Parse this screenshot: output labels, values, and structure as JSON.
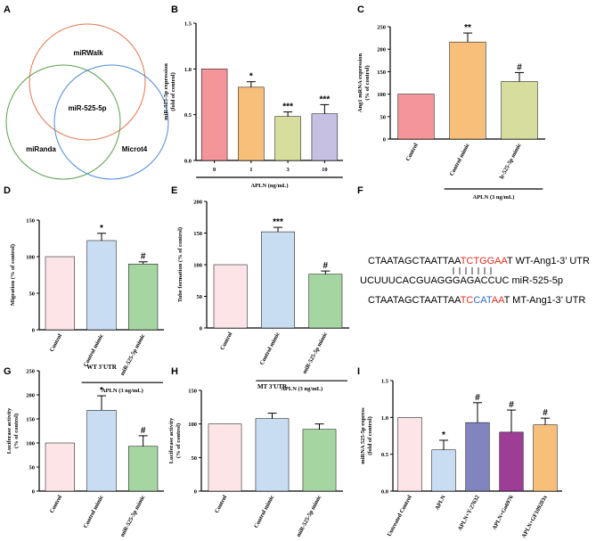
{
  "panel_labels": [
    "A",
    "B",
    "C",
    "D",
    "E",
    "F",
    "G",
    "H",
    "I"
  ],
  "venn": {
    "circles": [
      {
        "label": "miRWalk",
        "color": "#e8734a"
      },
      {
        "label": "miRanda",
        "color": "#5aa04a"
      },
      {
        "label": "Microt4",
        "color": "#4a8ad8"
      }
    ],
    "center_label": "miR-525-5p"
  },
  "sequence": {
    "lines": [
      {
        "segments": [
          {
            "text": "CTAATAGCTAATTAA",
            "color": "#000000"
          },
          {
            "text": "TCTGGAA",
            "color": "#e03020"
          },
          {
            "text": "T WT-Ang1-3’ UTR",
            "color": "#000000"
          }
        ]
      },
      {
        "segments": [
          {
            "text": "UCUUUCACGUAGGGAGACCUC   miR-525-5p",
            "color": "#000000"
          }
        ]
      },
      {
        "segments": [
          {
            "text": "CTAATAGCTAATTAA",
            "color": "#000000"
          },
          {
            "text": "TC",
            "color": "#e03020"
          },
          {
            "text": "CAT",
            "color": "#2f6ecf"
          },
          {
            "text": "AA",
            "color": "#e03020"
          },
          {
            "text": "T MT-Ang1-3’ UTR",
            "color": "#000000"
          }
        ]
      }
    ]
  },
  "chart_data": [
    {
      "panel": "B",
      "type": "bar",
      "title": "",
      "ylabel": "miR-525-5p expression\n(fold of control)",
      "xlabel": "APLN (ng/mL)",
      "categories": [
        "0",
        "1",
        "3",
        "10"
      ],
      "values": [
        1.0,
        0.8,
        0.48,
        0.51
      ],
      "errors": [
        0,
        0.06,
        0.05,
        0.1
      ],
      "sig": [
        "",
        "*",
        "***",
        "***"
      ],
      "ylim": [
        0,
        1.5
      ],
      "yticks": [
        0.0,
        0.5,
        1.0,
        1.5
      ],
      "decimals": 1,
      "colors": [
        "#f4959a",
        "#f8bf7a",
        "#d7dd9c",
        "#c6c1e3"
      ],
      "rotate": false,
      "group_span": [
        0,
        3
      ],
      "group_label": "APLN (ng/mL)"
    },
    {
      "panel": "C",
      "type": "bar",
      "title": "",
      "ylabel": "Ang1 mRNA expression\n(% of control)",
      "xlabel": "",
      "categories": [
        "Control",
        "Control mimic",
        "lr-525-5p mimic"
      ],
      "values": [
        100,
        216,
        128
      ],
      "errors": [
        0,
        20,
        20
      ],
      "sig": [
        "",
        "**",
        "#"
      ],
      "ylim": [
        0,
        250
      ],
      "yticks": [
        0,
        50,
        100,
        150,
        200,
        250
      ],
      "decimals": 0,
      "colors": [
        "#f4959a",
        "#f8bf7a",
        "#d7dd9c"
      ],
      "rotate": true,
      "group_span": [
        1,
        2
      ],
      "group_label": "APLN (3 ng/mL)"
    },
    {
      "panel": "D",
      "type": "bar",
      "title": "",
      "ylabel": "Migration (% of control)",
      "xlabel": "",
      "categories": [
        "Control",
        "Control mimic",
        "miR-525-5p mimic"
      ],
      "values": [
        100,
        122,
        90
      ],
      "errors": [
        0,
        10,
        3
      ],
      "sig": [
        "",
        "*",
        "#"
      ],
      "ylim": [
        0,
        150
      ],
      "yticks": [
        0,
        50,
        100,
        150
      ],
      "decimals": 0,
      "colors": [
        "#fce4e7",
        "#c8dcf2",
        "#a5d6a1"
      ],
      "rotate": true,
      "group_span": [
        1,
        2
      ],
      "group_label": "APLN (3 ng/mL)"
    },
    {
      "panel": "E",
      "type": "bar",
      "title": "",
      "ylabel": "Tube formation (% of control)",
      "xlabel": "",
      "categories": [
        "Control",
        "Control mimic",
        "miR-525-5p mimic"
      ],
      "values": [
        100,
        152,
        85
      ],
      "errors": [
        0,
        7,
        5
      ],
      "sig": [
        "",
        "***",
        "#"
      ],
      "ylim": [
        0,
        200
      ],
      "yticks": [
        0,
        50,
        100,
        150,
        200
      ],
      "decimals": 0,
      "colors": [
        "#fce4e7",
        "#c8dcf2",
        "#a5d6a1"
      ],
      "rotate": true,
      "group_span": [
        1,
        2
      ],
      "group_label": "APLN (3 ng/mL)"
    },
    {
      "panel": "G",
      "type": "bar",
      "title": "WT 3'UTR",
      "ylabel": "Luciferase activity\n(% of control)",
      "xlabel": "",
      "categories": [
        "Control",
        "Control mimic",
        "miR-525-5p mimic"
      ],
      "values": [
        100,
        168,
        93
      ],
      "errors": [
        0,
        30,
        22
      ],
      "sig": [
        "",
        "*",
        "#"
      ],
      "ylim": [
        0,
        250
      ],
      "yticks": [
        0,
        50,
        100,
        150,
        200,
        250
      ],
      "decimals": 0,
      "colors": [
        "#fce4e7",
        "#c8dcf2",
        "#a5d6a1"
      ],
      "rotate": true,
      "group_span": [
        1,
        2
      ],
      "group_label": "APLN (3 ng/mL)"
    },
    {
      "panel": "H",
      "type": "bar",
      "title": "MT 3'UTR",
      "ylabel": "Luciferase activity\n(% of control)",
      "xlabel": "",
      "categories": [
        "Control",
        "Control mimic",
        "miR-525-5p mimic"
      ],
      "values": [
        100,
        108,
        92
      ],
      "errors": [
        0,
        8,
        8
      ],
      "sig": [
        "",
        "",
        ""
      ],
      "ylim": [
        0,
        150
      ],
      "yticks": [
        0,
        50,
        100,
        150
      ],
      "decimals": 0,
      "colors": [
        "#fce4e7",
        "#c8dcf2",
        "#a5d6a1"
      ],
      "rotate": true,
      "group_span": [
        1,
        2
      ],
      "group_label": "APLN (3 ng/mL)"
    },
    {
      "panel": "I",
      "type": "bar",
      "title": "",
      "ylabel": "miRNA 525-5p express\n(fold of control)",
      "xlabel": "",
      "categories": [
        "Untreated Control",
        "APLN",
        "APLN+Y-27632",
        "APLN+Go6976",
        "APLN+GF109203x"
      ],
      "values": [
        1.0,
        0.56,
        0.93,
        0.8,
        0.9
      ],
      "errors": [
        0,
        0.13,
        0.27,
        0.3,
        0.09
      ],
      "sig": [
        "",
        "*",
        "#",
        "#",
        "#"
      ],
      "ylim": [
        0,
        1.5
      ],
      "yticks": [
        0.0,
        0.5,
        1.0,
        1.5
      ],
      "decimals": 1,
      "colors": [
        "#fce4e7",
        "#c8dcf2",
        "#8285bd",
        "#9d3d95",
        "#f8bf7a"
      ],
      "rotate": true,
      "group_span": null,
      "group_label": ""
    }
  ]
}
